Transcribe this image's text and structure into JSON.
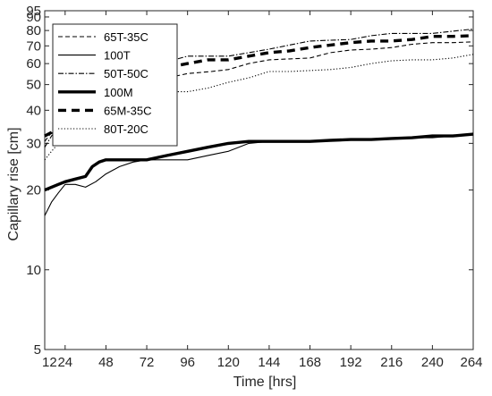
{
  "chart_data": {
    "type": "line",
    "title": "",
    "xlabel": "Time [hrs]",
    "ylabel": "Capillary  rise [cm]",
    "xlim": [
      12,
      264
    ],
    "ylim": [
      5,
      95
    ],
    "y_scale": "log",
    "x_ticks": [
      12,
      24,
      48,
      72,
      96,
      120,
      144,
      168,
      192,
      216,
      240,
      264
    ],
    "y_ticks": [
      5,
      10,
      20,
      30,
      40,
      50,
      60,
      70,
      80,
      90,
      95
    ],
    "grid": false,
    "legend_position": "top-left",
    "series": [
      {
        "name": "65T-35C",
        "line_style": "dashed",
        "weight": "thin",
        "x": [
          12,
          16,
          20,
          24,
          30,
          36,
          44,
          52,
          60,
          72,
          84,
          96,
          110,
          120,
          132,
          144,
          156,
          168,
          180,
          192,
          204,
          216,
          228,
          240,
          252,
          264
        ],
        "y": [
          30.5,
          33,
          35,
          37,
          39,
          41,
          44,
          47,
          49,
          52,
          53,
          55,
          56,
          57,
          60,
          62,
          62.5,
          63,
          66,
          67.5,
          68,
          69,
          71,
          72,
          72,
          72.5
        ]
      },
      {
        "name": "100T",
        "line_style": "solid",
        "weight": "thin",
        "x": [
          12,
          16,
          20,
          24,
          30,
          36,
          42,
          48,
          56,
          64,
          72,
          84,
          96,
          108,
          120,
          132,
          144,
          156,
          168,
          180,
          192,
          204,
          216,
          228,
          240,
          252,
          264
        ],
        "y": [
          16,
          18,
          19.5,
          21,
          21,
          20.5,
          21.5,
          23,
          24.5,
          25.5,
          26,
          26,
          26,
          27,
          28,
          30,
          30.5,
          30.5,
          30.5,
          31,
          31,
          31,
          31.5,
          31.5,
          31.5,
          32,
          32.5
        ]
      },
      {
        "name": "50T-50C",
        "line_style": "dashdot",
        "weight": "thin",
        "x": [
          12,
          16,
          20,
          24,
          30,
          36,
          44,
          52,
          60,
          66,
          72,
          84,
          96,
          108,
          120,
          132,
          144,
          156,
          168,
          180,
          192,
          204,
          216,
          228,
          240,
          252,
          264
        ],
        "y": [
          29,
          32,
          34,
          36.5,
          40,
          43,
          46,
          49,
          51,
          55,
          56,
          61,
          64,
          64,
          64,
          66,
          68,
          70.5,
          73,
          73.5,
          74,
          76.5,
          78,
          78,
          78,
          79.5,
          81
        ]
      },
      {
        "name": "100M",
        "line_style": "solid",
        "weight": "thick",
        "x": [
          12,
          16,
          20,
          24,
          30,
          36,
          40,
          44,
          48,
          56,
          64,
          72,
          84,
          96,
          108,
          120,
          132,
          144,
          156,
          168,
          180,
          192,
          204,
          216,
          228,
          240,
          252,
          264
        ],
        "y": [
          20,
          20.5,
          21,
          21.5,
          22,
          22.5,
          24.5,
          25.5,
          26,
          26,
          26,
          26,
          27,
          28,
          29,
          30,
          30.5,
          30.5,
          30.5,
          30.5,
          30.8,
          31,
          31,
          31.3,
          31.5,
          32,
          32,
          32.5
        ]
      },
      {
        "name": "65M-35C",
        "line_style": "dashed",
        "weight": "thick",
        "x": [
          12,
          16,
          20,
          24,
          30,
          36,
          44,
          52,
          60,
          66,
          72,
          84,
          96,
          108,
          120,
          132,
          144,
          156,
          168,
          180,
          192,
          204,
          216,
          228,
          240,
          252,
          264
        ],
        "y": [
          32,
          33,
          37,
          41,
          43,
          45,
          47,
          49,
          51,
          55,
          56,
          58,
          60,
          62,
          62,
          64,
          66,
          67,
          69,
          70.5,
          72,
          73,
          73,
          74,
          76,
          76,
          76.5
        ]
      },
      {
        "name": "80T-20C",
        "line_style": "dotted",
        "weight": "thin",
        "x": [
          12,
          16,
          20,
          24,
          30,
          36,
          44,
          52,
          60,
          72,
          84,
          96,
          108,
          120,
          132,
          144,
          156,
          168,
          180,
          192,
          204,
          216,
          228,
          240,
          252,
          264
        ],
        "y": [
          26,
          28,
          30,
          32,
          34,
          36,
          38.5,
          41,
          43.5,
          46.5,
          47,
          47,
          48.5,
          51,
          53,
          56,
          56,
          56.5,
          57,
          58,
          60,
          61.5,
          62,
          62,
          63,
          65
        ]
      }
    ]
  }
}
